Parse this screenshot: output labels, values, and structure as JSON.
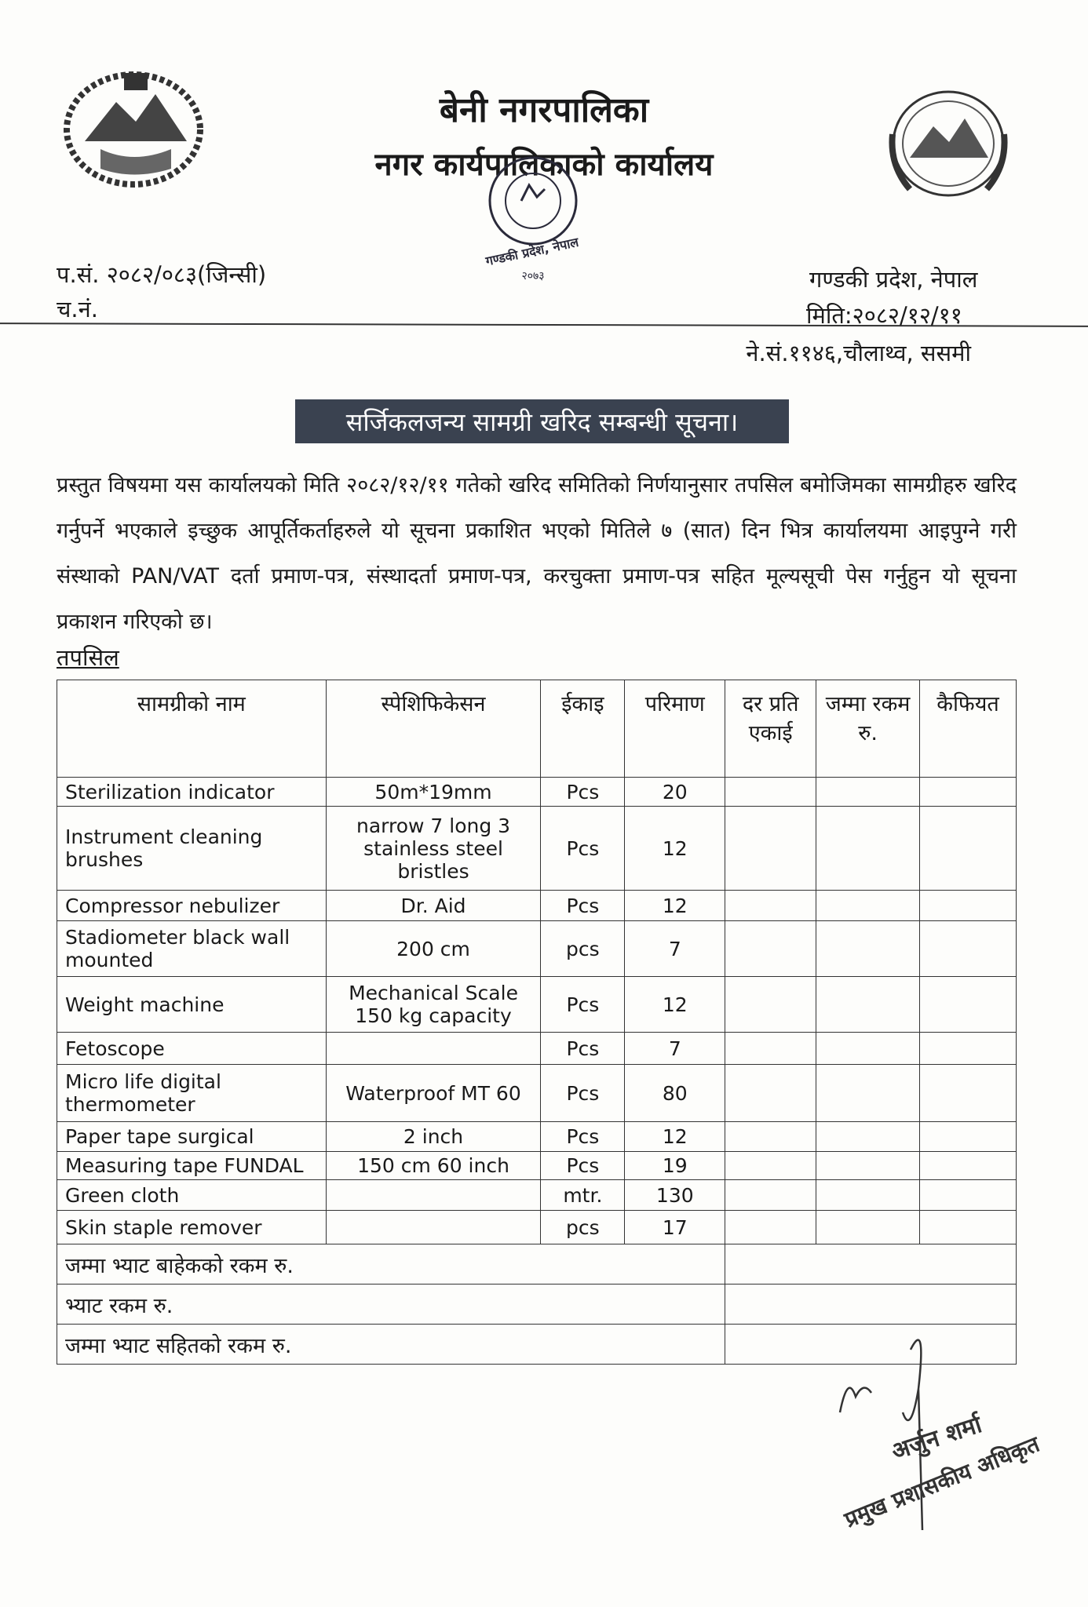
{
  "header": {
    "municipality": "बेनी नगरपालिका",
    "office": "नगर कार्यपालिकाको कार्यालय",
    "ref_no": "प.सं. २०८२/०८३(जिन्सी)",
    "dispatch_no": "च.नं.",
    "province": "गण्डकी प्रदेश, नेपाल",
    "date": "मिति:२०८२/१२/११",
    "nepal_sambat": "ने.सं.११४६,चौलाथ्व, ससमी",
    "stamp_text": "नगर कार्यपालिकाको कार्यालय बेनी, म्याग्दी गण्डकी प्रदेश, नेपाल २०७३"
  },
  "notice": {
    "title": "सर्जिकलजन्य सामग्री खरिद सम्बन्धी सूचना।",
    "body": "प्रस्तुत विषयमा यस कार्यालयको मिति २०८२/१२/११ गतेको खरिद समितिको निर्णयानुसार तपसिल बमोजिमका सामग्रीहरु खरिद गर्नुपर्ने भएकाले इच्छुक आपूर्तिकर्ताहरुले यो सूचना प्रकाशित भएको मितिले ७ (सात) दिन भित्र कार्यालयमा आइपुग्ने गरी संस्थाको PAN/VAT दर्ता प्रमाण-पत्र, संस्थादर्ता प्रमाण-पत्र, करचुक्ता प्रमाण-पत्र सहित मूल्यसूची पेस गर्नुहुन यो सूचना प्रकाशन गरिएको छ।",
    "schedule_label": "तपसिल"
  },
  "table": {
    "headers": [
      "सामग्रीको नाम",
      "स्पेशिफिकेसन",
      "ईकाइ",
      "परिमाण",
      "दर प्रति एकाई",
      "जम्मा रकम रु.",
      "कैफियत"
    ],
    "rows": [
      [
        "Sterilization indicator",
        "50m*19mm",
        "Pcs",
        "20"
      ],
      [
        "Instrument cleaning brushes",
        "narrow 7 long 3 stainless steel bristles",
        "Pcs",
        "12"
      ],
      [
        "Compressor nebulizer",
        "Dr. Aid",
        "Pcs",
        "12"
      ],
      [
        "Stadiometer black wall mounted",
        "200 cm",
        "pcs",
        "7"
      ],
      [
        "Weight machine",
        "Mechanical Scale 150 kg capacity",
        "Pcs",
        "12"
      ],
      [
        "Fetoscope",
        "",
        "Pcs",
        "7"
      ],
      [
        "Micro life digital thermometer",
        "Waterproof MT 60",
        "Pcs",
        "80"
      ],
      [
        "Paper tape surgical",
        "2 inch",
        "Pcs",
        "12"
      ],
      [
        "Measuring tape FUNDAL",
        "150 cm 60 inch",
        "Pcs",
        "19"
      ],
      [
        "Green cloth",
        "",
        "mtr.",
        "130"
      ],
      [
        "Skin staple remover",
        "",
        "pcs",
        "17"
      ]
    ],
    "summary": [
      "जम्मा भ्याट बाहेकको रकम रु.",
      "भ्याट रकम रु.",
      "जम्मा भ्याट सहितको रकम रु."
    ]
  },
  "signature": {
    "name": "अर्जुन शर्मा",
    "designation": "प्रमुख प्रशासकीय अधिकृत"
  }
}
